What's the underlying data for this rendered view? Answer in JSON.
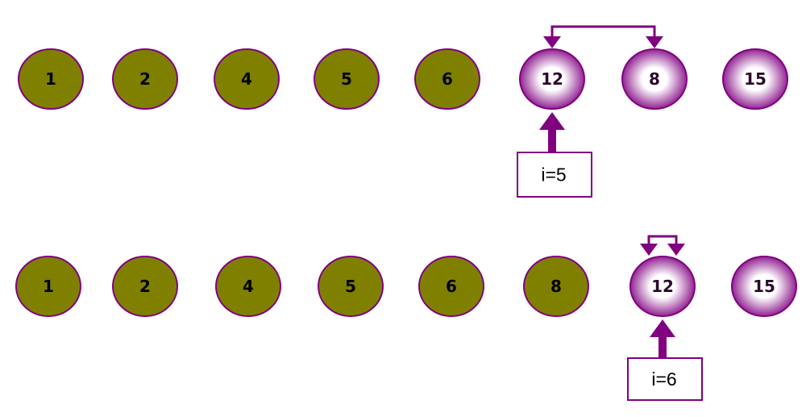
{
  "colors": {
    "sorted_fill": "#808000",
    "node_stroke": "#800080",
    "active_dark": "#800080",
    "active_light": "#ffffff",
    "arrow": "#800080",
    "box_stroke": "#800080"
  },
  "rows": [
    {
      "nodes": [
        {
          "label": "1",
          "active": false
        },
        {
          "label": "2",
          "active": false
        },
        {
          "label": "4",
          "active": false
        },
        {
          "label": "5",
          "active": false
        },
        {
          "label": "6",
          "active": false
        },
        {
          "label": "12",
          "active": true
        },
        {
          "label": "8",
          "active": true
        },
        {
          "label": "15",
          "active": true
        }
      ],
      "swap": [
        5,
        6
      ],
      "pointer_at": 5,
      "index_label": "i=5"
    },
    {
      "nodes": [
        {
          "label": "1",
          "active": false
        },
        {
          "label": "2",
          "active": false
        },
        {
          "label": "4",
          "active": false
        },
        {
          "label": "5",
          "active": false
        },
        {
          "label": "6",
          "active": false
        },
        {
          "label": "8",
          "active": false
        },
        {
          "label": "12",
          "active": true
        },
        {
          "label": "15",
          "active": true
        }
      ],
      "swap": [
        6,
        6
      ],
      "pointer_at": 6,
      "index_label": "i=6"
    }
  ]
}
